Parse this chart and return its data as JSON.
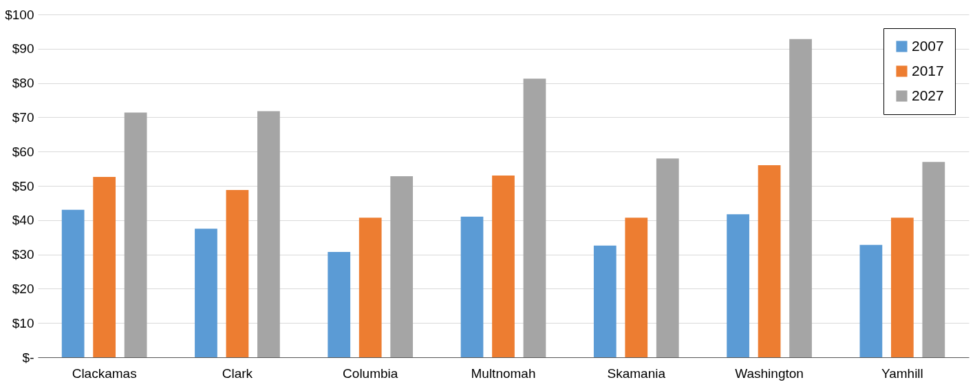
{
  "chart_data": {
    "type": "bar",
    "categories": [
      "Clackamas",
      "Clark",
      "Columbia",
      "Multnomah",
      "Skamania",
      "Washington",
      "Yamhill"
    ],
    "series": [
      {
        "name": "2007",
        "color": "#5b9bd5",
        "values": [
          43,
          37.5,
          30.7,
          41,
          32.6,
          41.7,
          32.8
        ]
      },
      {
        "name": "2017",
        "color": "#ed7d31",
        "values": [
          52.6,
          48.8,
          40.7,
          53,
          40.7,
          56,
          40.7
        ]
      },
      {
        "name": "2027",
        "color": "#a5a5a5",
        "values": [
          71.4,
          71.8,
          52.8,
          81.3,
          58,
          92.8,
          57
        ]
      }
    ],
    "ylim": [
      0,
      100
    ],
    "yticks": [
      {
        "value": 0,
        "label": "$-"
      },
      {
        "value": 10,
        "label": "$10"
      },
      {
        "value": 20,
        "label": "$20"
      },
      {
        "value": 30,
        "label": "$30"
      },
      {
        "value": 40,
        "label": "$40"
      },
      {
        "value": 50,
        "label": "$50"
      },
      {
        "value": 60,
        "label": "$60"
      },
      {
        "value": 70,
        "label": "$70"
      },
      {
        "value": 80,
        "label": "$80"
      },
      {
        "value": 90,
        "label": "$90"
      },
      {
        "value": 100,
        "label": "$100"
      }
    ],
    "grid": "y",
    "legend": "top right"
  }
}
